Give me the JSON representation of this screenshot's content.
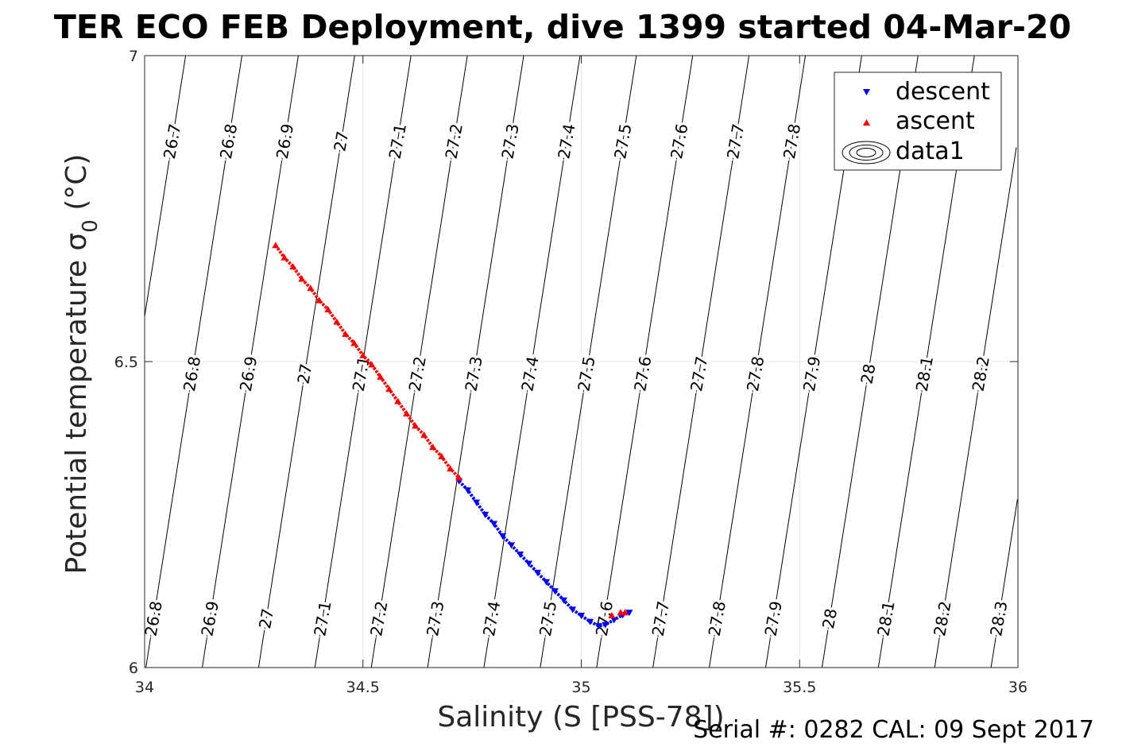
{
  "title": "TER ECO FEB Deployment, dive 1399 started 04-Mar-20",
  "footer": "Serial #: 0282  CAL: 09 Sept 2017",
  "colors": {
    "descent": "#0000ff",
    "ascent": "#ff0000",
    "contour": "#000000",
    "grid": "#e6e6e6",
    "axis": "#262626"
  },
  "chart_data": {
    "type": "scatter",
    "xlabel": "Salinity (S [PSS-78])",
    "ylabel_main": "Potential temperature σ",
    "ylabel_sub": "0",
    "ylabel_unit": " (°C)",
    "xlim": [
      34,
      36
    ],
    "ylim": [
      6,
      7
    ],
    "xticks": [
      34,
      34.5,
      35,
      35.5,
      36
    ],
    "xtick_labels": [
      "34",
      "34.5",
      "35",
      "35.5",
      "36"
    ],
    "yticks": [
      6,
      6.5,
      7
    ],
    "ytick_labels": [
      "6",
      "6.5",
      "7"
    ],
    "grid": true,
    "legend_position": "top-right",
    "legend": [
      "descent",
      "ascent",
      "data1"
    ],
    "contours": {
      "levels": [
        26.7,
        26.8,
        26.9,
        27.0,
        27.1,
        27.2,
        27.3,
        27.4,
        27.5,
        27.6,
        27.7,
        27.8,
        27.9,
        28.0,
        28.1,
        28.2,
        28.3
      ],
      "level_labels": [
        "26.7",
        "26.8",
        "26.9",
        "27",
        "27.1",
        "27.2",
        "27.3",
        "27.4",
        "27.5",
        "27.6",
        "27.7",
        "27.8",
        "27.9",
        "28",
        "28.1",
        "28.2",
        "28.3"
      ],
      "label_rows": [
        {
          "y": 6.86,
          "levels": [
            "26.7",
            "26.8",
            "26.9",
            "27",
            "27.1",
            "27.2",
            "27.3",
            "27.4",
            "27.5",
            "27.6",
            "27.7",
            "27.8"
          ]
        },
        {
          "y": 6.48,
          "levels": [
            "26.8",
            "26.9",
            "27",
            "27.1",
            "27.2",
            "27.3",
            "27.4",
            "27.5",
            "27.6",
            "27.7",
            "27.8",
            "27.9",
            "28",
            "28.1",
            "28.2"
          ]
        },
        {
          "y": 6.08,
          "levels": [
            "26.8",
            "26.9",
            "27",
            "27.1",
            "27.2",
            "27.3",
            "27.4",
            "27.5",
            "27.6",
            "27.7",
            "27.8",
            "27.9",
            "28",
            "28.1",
            "28.2",
            "28.3"
          ]
        }
      ]
    },
    "series": [
      {
        "name": "descent",
        "marker": "triangle-down",
        "points": [
          [
            34.72,
            6.305
          ],
          [
            34.74,
            6.29
          ],
          [
            34.76,
            6.27
          ],
          [
            34.78,
            6.25
          ],
          [
            34.8,
            6.235
          ],
          [
            34.82,
            6.215
          ],
          [
            34.84,
            6.2
          ],
          [
            34.86,
            6.185
          ],
          [
            34.88,
            6.17
          ],
          [
            34.9,
            6.155
          ],
          [
            34.92,
            6.14
          ],
          [
            34.94,
            6.125
          ],
          [
            34.96,
            6.11
          ],
          [
            34.98,
            6.095
          ],
          [
            35.0,
            6.085
          ],
          [
            35.02,
            6.075
          ],
          [
            35.04,
            6.068
          ],
          [
            35.055,
            6.07
          ],
          [
            35.075,
            6.078
          ],
          [
            35.095,
            6.086
          ],
          [
            35.11,
            6.09
          ]
        ]
      },
      {
        "name": "ascent",
        "marker": "triangle-up",
        "points": [
          [
            34.3,
            6.69
          ],
          [
            34.32,
            6.67
          ],
          [
            34.34,
            6.655
          ],
          [
            34.36,
            6.635
          ],
          [
            34.38,
            6.62
          ],
          [
            34.4,
            6.6
          ],
          [
            34.42,
            6.585
          ],
          [
            34.44,
            6.565
          ],
          [
            34.46,
            6.545
          ],
          [
            34.48,
            6.53
          ],
          [
            34.5,
            6.51
          ],
          [
            34.52,
            6.495
          ],
          [
            34.54,
            6.475
          ],
          [
            34.56,
            6.455
          ],
          [
            34.58,
            6.435
          ],
          [
            34.6,
            6.415
          ],
          [
            34.62,
            6.395
          ],
          [
            34.64,
            6.38
          ],
          [
            34.66,
            6.36
          ],
          [
            34.68,
            6.345
          ],
          [
            34.7,
            6.325
          ],
          [
            34.72,
            6.31
          ],
          [
            35.07,
            6.085
          ],
          [
            35.09,
            6.09
          ],
          [
            35.1,
            6.09
          ]
        ]
      }
    ]
  }
}
